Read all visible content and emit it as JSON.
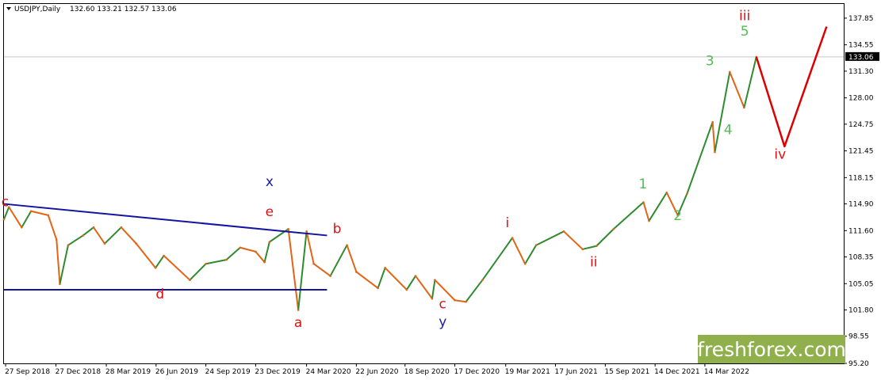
{
  "header": {
    "symbol": "USDJPY,Daily",
    "ohlc": "132.60 133.21 132.57 133.06"
  },
  "watermark": {
    "text": "freshforex.com",
    "bg": "#8fb04a"
  },
  "colors": {
    "candle_up": "#2e8b2e",
    "candle_down": "#e36414",
    "trendline": "#1414a0",
    "projection": "#dd0000",
    "label_red": "#dd1111",
    "label_blue": "#1a1aa6",
    "label_green": "#55bb55",
    "price_tag_bg": "#000000"
  },
  "chart_data": {
    "type": "line",
    "title": "USDJPY,Daily",
    "xlabel": "",
    "ylabel": "",
    "ylim": [
      95.2,
      139.6
    ],
    "y_ticks": [
      "137.85",
      "134.55",
      "131.30",
      "128.00",
      "124.75",
      "121.45",
      "118.15",
      "114.90",
      "111.60",
      "108.35",
      "105.05",
      "101.80",
      "98.55",
      "95.20"
    ],
    "x_ticks": [
      "27 Sep 2018",
      "27 Dec 2018",
      "28 Mar 2019",
      "26 Jun 2019",
      "24 Sep 2019",
      "23 Dec 2019",
      "24 Mar 2020",
      "22 Jun 2020",
      "18 Sep 2020",
      "17 Dec 2020",
      "19 Mar 2021",
      "17 Jun 2021",
      "15 Sep 2021",
      "14 Dec 2021",
      "14 Mar 2022"
    ],
    "grid": false,
    "current_price": "133.06",
    "series": [
      {
        "name": "USDJPY",
        "x": [
          "2018-09-24",
          "2018-10-03",
          "2018-10-26",
          "2018-11-12",
          "2018-12-13",
          "2018-12-28",
          "2019-01-03",
          "2019-01-18",
          "2019-02-14",
          "2019-03-05",
          "2019-03-25",
          "2019-04-24",
          "2019-05-21",
          "2019-06-25",
          "2019-07-10",
          "2019-08-26",
          "2019-09-24",
          "2019-10-31",
          "2019-11-25",
          "2019-12-23",
          "2020-01-08",
          "2020-01-17",
          "2020-02-20",
          "2020-03-09",
          "2020-03-24",
          "2020-04-06",
          "2020-05-06",
          "2020-06-05",
          "2020-06-22",
          "2020-07-31",
          "2020-08-13",
          "2020-09-21",
          "2020-10-07",
          "2020-11-06",
          "2020-11-11",
          "2020-12-17",
          "2021-01-06",
          "2021-02-05",
          "2021-03-31",
          "2021-04-23",
          "2021-05-13",
          "2021-07-02",
          "2021-08-05",
          "2021-08-30",
          "2021-09-30",
          "2021-11-23",
          "2021-12-03",
          "2022-01-04",
          "2022-01-24",
          "2022-02-10",
          "2022-03-28",
          "2022-04-01",
          "2022-04-28",
          "2022-05-24",
          "2022-06-15"
        ],
        "values": [
          113.0,
          114.5,
          112.0,
          114.0,
          113.5,
          110.5,
          105.0,
          109.8,
          111.0,
          112.0,
          110.0,
          112.0,
          110.0,
          107.0,
          108.5,
          105.5,
          107.5,
          108.0,
          109.5,
          109.0,
          107.7,
          110.2,
          111.8,
          101.8,
          111.5,
          107.5,
          106.0,
          109.8,
          106.5,
          104.5,
          107.0,
          104.3,
          106.0,
          103.2,
          105.5,
          103.0,
          102.8,
          105.5,
          110.7,
          107.5,
          109.8,
          111.5,
          109.3,
          109.7,
          111.8,
          115.1,
          112.8,
          116.3,
          113.5,
          116.2,
          125.0,
          121.3,
          131.2,
          126.8,
          133.06
        ]
      }
    ],
    "projection": {
      "x": [
        "2022-06-15",
        "2022-08-05",
        "2022-10-20"
      ],
      "values": [
        133.06,
        122.0,
        136.8
      ]
    },
    "trendlines": [
      {
        "x": [
          "2018-09-24",
          "2020-04-30"
        ],
        "values": [
          114.9,
          111.0
        ]
      },
      {
        "x": [
          "2018-09-24",
          "2020-04-30"
        ],
        "values": [
          104.3,
          104.3
        ]
      }
    ],
    "wave_labels": [
      {
        "text": "c",
        "date": "2018-09-26",
        "price": 114.6,
        "color": "label_red"
      },
      {
        "text": "d",
        "date": "2019-07-03",
        "price": 103.2,
        "color": "label_red"
      },
      {
        "text": "x",
        "date": "2020-01-17",
        "price": 117.1,
        "color": "label_blue"
      },
      {
        "text": "e",
        "date": "2020-01-17",
        "price": 113.4,
        "color": "label_red"
      },
      {
        "text": "a",
        "date": "2020-03-09",
        "price": 99.7,
        "color": "label_red"
      },
      {
        "text": "b",
        "date": "2020-05-18",
        "price": 111.3,
        "color": "label_red"
      },
      {
        "text": "c",
        "date": "2020-11-25",
        "price": 102.0,
        "color": "label_red"
      },
      {
        "text": "y",
        "date": "2020-11-25",
        "price": 99.8,
        "color": "label_blue"
      },
      {
        "text": "i",
        "date": "2021-03-22",
        "price": 112.0,
        "color": "label_red"
      },
      {
        "text": "ii",
        "date": "2021-08-25",
        "price": 107.2,
        "color": "label_red"
      },
      {
        "text": "1",
        "date": "2021-11-22",
        "price": 116.8,
        "color": "label_green"
      },
      {
        "text": "2",
        "date": "2022-01-24",
        "price": 112.9,
        "color": "label_green"
      },
      {
        "text": "3",
        "date": "2022-03-23",
        "price": 132.0,
        "color": "label_green"
      },
      {
        "text": "4",
        "date": "2022-04-25",
        "price": 123.5,
        "color": "label_green"
      },
      {
        "text": "5",
        "date": "2022-05-25",
        "price": 135.7,
        "color": "label_green"
      },
      {
        "text": "iii",
        "date": "2022-05-25",
        "price": 137.6,
        "color": "label_red"
      },
      {
        "text": "iv",
        "date": "2022-07-28",
        "price": 120.5,
        "color": "label_red"
      }
    ]
  }
}
